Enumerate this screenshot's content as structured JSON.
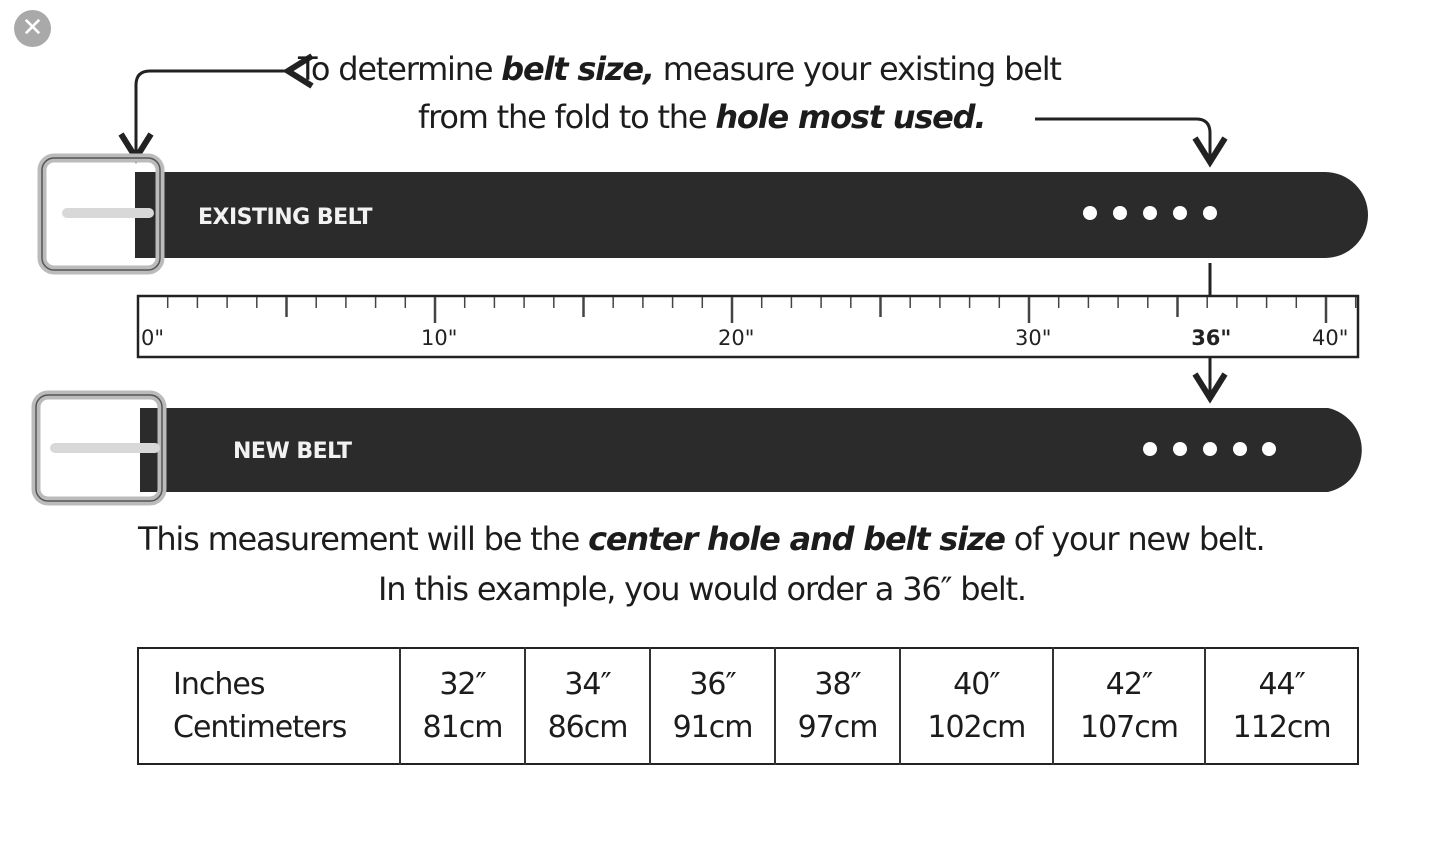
{
  "close_icon": "close-icon",
  "intro": {
    "p1": "To determine ",
    "p1_em": "belt size,",
    "p2": " measure your existing belt",
    "p3": "from the fold to the ",
    "p3_em": "hole most used."
  },
  "existing_belt_label": "EXISTING BELT",
  "new_belt_label": "NEW BELT",
  "ruler": {
    "labels": [
      "0\"",
      "10\"",
      "20\"",
      "30\"",
      "36\"",
      "40\""
    ],
    "label_values": [
      0,
      10,
      20,
      30,
      36,
      40
    ],
    "max": 41,
    "marked_value": 36
  },
  "result": {
    "p1": "This measurement will be the ",
    "p1_em": "center hole and belt size",
    "p2": " of your new belt.",
    "line2": "In this example, you would order a 36″ belt."
  },
  "size_table": {
    "row_headers": [
      "Inches",
      "Centimeters"
    ],
    "inches": [
      "32″",
      "34″",
      "36″",
      "38″",
      "40″",
      "42″",
      "44″"
    ],
    "centimeters": [
      "81cm",
      "86cm",
      "91cm",
      "97cm",
      "102cm",
      "107cm",
      "112cm"
    ]
  },
  "colors": {
    "belt": "#2b2b2b",
    "buckle": "#c8c8c8",
    "close_bg": "#a9a9a9"
  }
}
